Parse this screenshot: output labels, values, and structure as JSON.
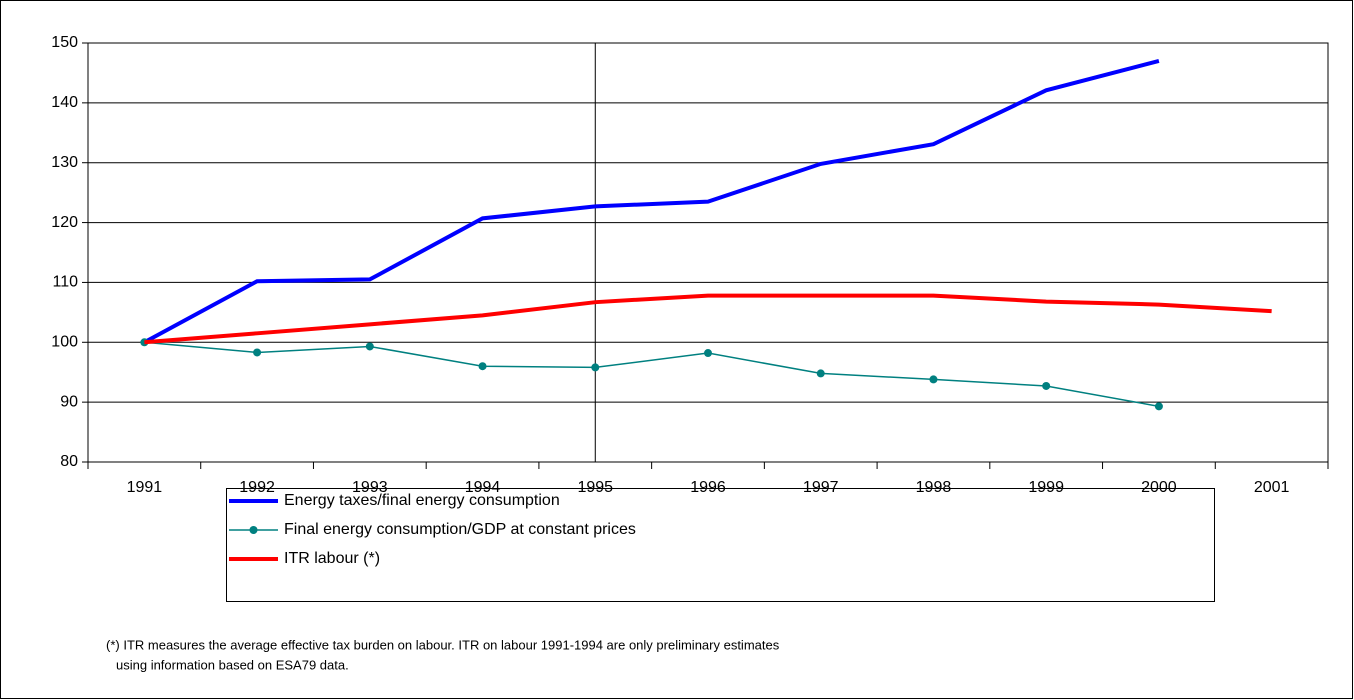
{
  "chart_data": {
    "type": "line",
    "categories": [
      "1991",
      "1992",
      "1993",
      "1994",
      "1995",
      "1996",
      "1997",
      "1998",
      "1999",
      "2000",
      "2001"
    ],
    "series": [
      {
        "name": "Energy taxes/final energy consumption",
        "color": "#0000ff",
        "marker": false,
        "values": [
          100,
          110.2,
          110.5,
          120.7,
          122.7,
          123.5,
          129.8,
          133.1,
          142.1,
          147,
          null
        ]
      },
      {
        "name": "Final energy consumption/GDP at constant prices",
        "color": "#008080",
        "marker": true,
        "values": [
          100,
          98.3,
          99.3,
          96,
          95.8,
          98.2,
          94.8,
          93.8,
          92.7,
          89.3,
          null
        ]
      },
      {
        "name": "ITR labour (*)",
        "color": "#ff0000",
        "marker": false,
        "values": [
          100,
          101.5,
          103,
          104.5,
          106.7,
          107.8,
          107.8,
          107.8,
          106.8,
          106.3,
          105.2
        ]
      }
    ],
    "ylim": [
      80,
      150
    ],
    "yticks": [
      80,
      90,
      100,
      110,
      120,
      130,
      140,
      150
    ],
    "grid": true,
    "notes": [
      "(*) ITR measures the average effective tax burden on labour. ITR on labour 1991-1994 are only preliminary estimates",
      "using information based on ESA79 data."
    ]
  }
}
